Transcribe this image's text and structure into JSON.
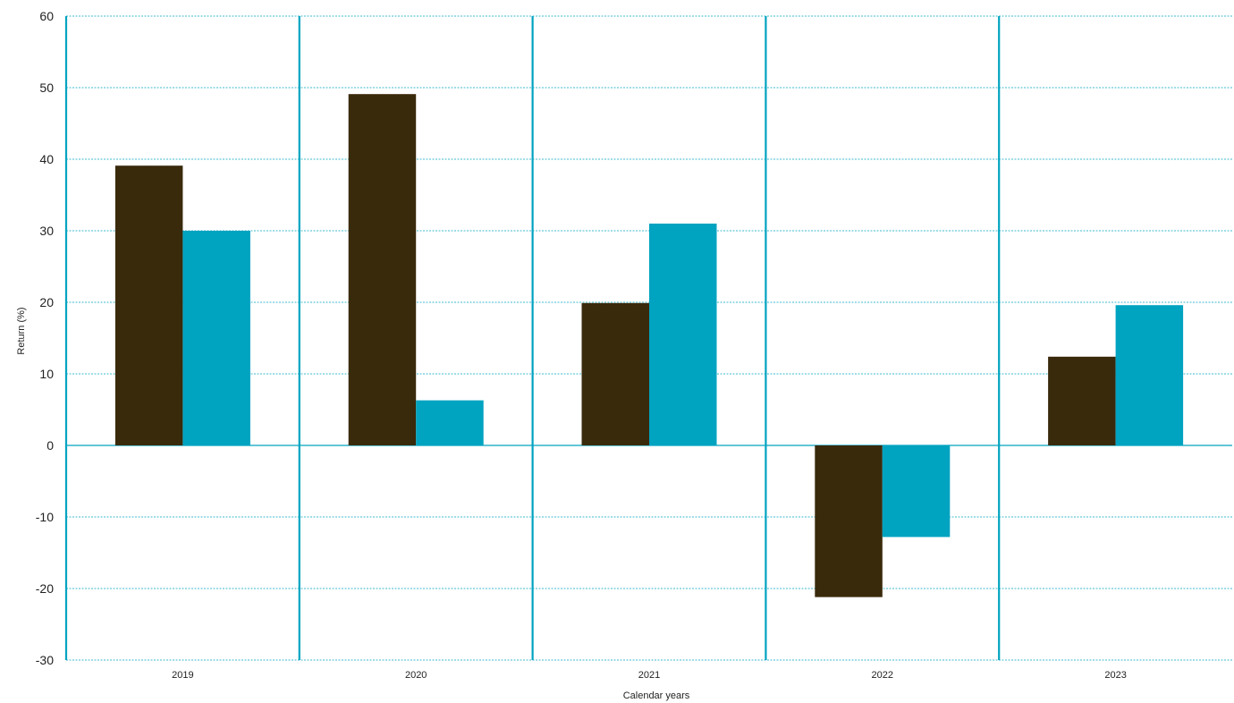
{
  "chart_data": {
    "type": "bar",
    "categories": [
      "2019",
      "2020",
      "2021",
      "2022",
      "2023"
    ],
    "series": [
      {
        "values": [
          39.1,
          49.1,
          19.9,
          -21.2,
          12.4
        ]
      },
      {
        "values": [
          30.0,
          6.3,
          31.0,
          -12.8,
          19.6
        ]
      }
    ],
    "xlabel": "Calendar years",
    "ylabel": "Return (%)",
    "ylim": [
      -30,
      60
    ],
    "yticks": [
      60,
      50,
      40,
      30,
      20,
      10,
      0,
      -10,
      -20,
      -30
    ],
    "grid": true,
    "legend": "none"
  },
  "colors": {
    "series": [
      "#3a2a0c",
      "#00a3c0"
    ],
    "axis": "#00a3c0",
    "grid": "#00a3c0"
  }
}
